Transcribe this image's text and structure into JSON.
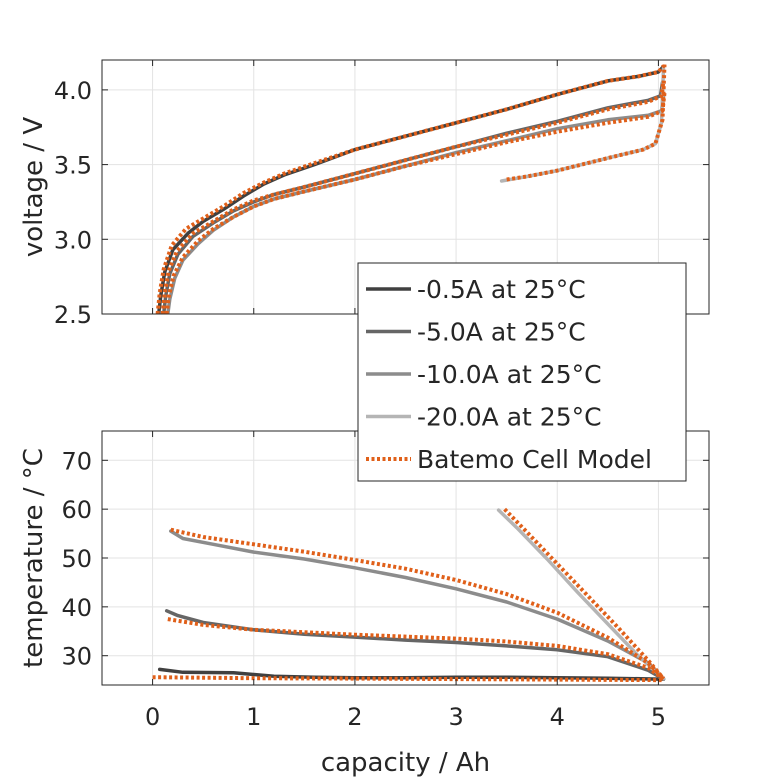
{
  "chart_data": [
    {
      "type": "line",
      "id": "voltage",
      "xlabel": "",
      "ylabel": "voltage / V",
      "xlim": [
        -0.5,
        5.5
      ],
      "ylim": [
        2.5,
        4.2
      ],
      "xticks": [
        0,
        1,
        2,
        3,
        4,
        5
      ],
      "yticks": [
        2.5,
        3.0,
        3.5,
        4.0
      ],
      "ytick_labels": [
        "2.5",
        "3.0",
        "3.5",
        "4.0"
      ],
      "grid": true,
      "series": [
        {
          "name": "-0.5A at 25°C",
          "color": "#404040",
          "style": "solid",
          "x": [
            0.06,
            0.08,
            0.12,
            0.2,
            0.35,
            0.5,
            0.7,
            0.9,
            1.1,
            1.3,
            1.6,
            2.0,
            2.5,
            3.0,
            3.5,
            4.0,
            4.5,
            4.8,
            5.0,
            5.04
          ],
          "y": [
            2.5,
            2.62,
            2.78,
            2.93,
            3.04,
            3.12,
            3.2,
            3.29,
            3.37,
            3.43,
            3.5,
            3.6,
            3.69,
            3.78,
            3.87,
            3.97,
            4.06,
            4.09,
            4.12,
            4.15
          ]
        },
        {
          "name": "-5.0A at 25°C",
          "color": "#666666",
          "style": "solid",
          "x": [
            0.11,
            0.13,
            0.17,
            0.25,
            0.4,
            0.6,
            0.8,
            1.0,
            1.2,
            1.5,
            2.0,
            2.5,
            3.0,
            3.5,
            4.0,
            4.5,
            4.9,
            5.02,
            5.04
          ],
          "y": [
            2.5,
            2.62,
            2.77,
            2.9,
            3.02,
            3.11,
            3.19,
            3.25,
            3.3,
            3.35,
            3.44,
            3.53,
            3.62,
            3.71,
            3.79,
            3.88,
            3.93,
            3.96,
            4.05
          ]
        },
        {
          "name": "-10.0A at 25°C",
          "color": "#8c8c8c",
          "style": "solid",
          "x": [
            0.15,
            0.17,
            0.22,
            0.3,
            0.45,
            0.6,
            0.8,
            1.0,
            1.2,
            1.5,
            2.0,
            2.5,
            3.0,
            3.5,
            4.0,
            4.5,
            4.9,
            5.03,
            5.05
          ],
          "y": [
            2.5,
            2.6,
            2.74,
            2.86,
            2.97,
            3.06,
            3.15,
            3.22,
            3.27,
            3.32,
            3.4,
            3.49,
            3.58,
            3.66,
            3.74,
            3.8,
            3.83,
            3.86,
            3.96
          ]
        },
        {
          "name": "-20.0A at 25°C",
          "color": "#b5b5b5",
          "style": "solid",
          "x": [
            3.45,
            3.7,
            4.0,
            4.3,
            4.6,
            4.85,
            4.97,
            5.03,
            5.05
          ],
          "y": [
            3.39,
            3.42,
            3.46,
            3.51,
            3.56,
            3.6,
            3.64,
            3.78,
            4.15
          ]
        },
        {
          "name": "Batemo Cell Model",
          "color": "#e0601a",
          "style": "dotted",
          "x": [
            0.05,
            0.07,
            0.11,
            0.19,
            0.33,
            0.5,
            0.7,
            0.9,
            1.1,
            1.3,
            1.6,
            2.0,
            2.5,
            3.0,
            3.5,
            4.0,
            4.5,
            4.8,
            5.0,
            5.05
          ],
          "y": [
            2.5,
            2.64,
            2.8,
            2.96,
            3.07,
            3.14,
            3.22,
            3.31,
            3.38,
            3.44,
            3.51,
            3.6,
            3.69,
            3.78,
            3.87,
            3.97,
            4.06,
            4.09,
            4.12,
            4.16
          ]
        },
        {
          "name": "",
          "color": "#e0601a",
          "style": "dotted",
          "x": [
            0.1,
            0.12,
            0.16,
            0.24,
            0.4,
            0.6,
            0.8,
            1.0,
            1.2,
            1.5,
            2.0,
            2.5,
            3.0,
            3.5,
            4.0,
            4.5,
            4.9,
            5.03,
            5.05
          ],
          "y": [
            2.5,
            2.64,
            2.79,
            2.92,
            3.04,
            3.12,
            3.2,
            3.26,
            3.3,
            3.35,
            3.44,
            3.53,
            3.62,
            3.7,
            3.78,
            3.87,
            3.92,
            3.96,
            4.06
          ]
        },
        {
          "name": "",
          "color": "#e0601a",
          "style": "dotted",
          "x": [
            0.14,
            0.16,
            0.21,
            0.3,
            0.45,
            0.6,
            0.8,
            1.0,
            1.2,
            1.5,
            2.0,
            2.5,
            3.0,
            3.5,
            4.0,
            4.5,
            4.9,
            5.04,
            5.06
          ],
          "y": [
            2.5,
            2.62,
            2.76,
            2.88,
            2.99,
            3.07,
            3.15,
            3.22,
            3.27,
            3.32,
            3.4,
            3.49,
            3.57,
            3.65,
            3.72,
            3.78,
            3.82,
            3.86,
            3.98
          ]
        },
        {
          "name": "",
          "color": "#e0601a",
          "style": "dotted",
          "x": [
            3.5,
            3.7,
            4.0,
            4.3,
            4.6,
            4.85,
            4.97,
            5.04,
            5.06
          ],
          "y": [
            3.4,
            3.42,
            3.46,
            3.51,
            3.56,
            3.6,
            3.64,
            3.8,
            4.17
          ]
        }
      ]
    },
    {
      "type": "line",
      "id": "temperature",
      "xlabel": "capacity / Ah",
      "ylabel": "temperature / °C",
      "xlim": [
        -0.5,
        5.5
      ],
      "ylim": [
        24,
        76
      ],
      "xticks": [
        0,
        1,
        2,
        3,
        4,
        5
      ],
      "xtick_labels": [
        "0",
        "1",
        "2",
        "3",
        "4",
        "5"
      ],
      "yticks": [
        30,
        40,
        50,
        60,
        70
      ],
      "ytick_labels": [
        "30",
        "40",
        "50",
        "60",
        "70"
      ],
      "grid": true,
      "series": [
        {
          "name": "-0.5A at 25°C",
          "color": "#404040",
          "style": "solid",
          "x": [
            0.07,
            0.3,
            0.8,
            1.2,
            1.6,
            2.0,
            2.5,
            3.0,
            3.5,
            4.0,
            4.5,
            5.0,
            5.05
          ],
          "y": [
            27.2,
            26.6,
            26.5,
            25.8,
            25.6,
            25.5,
            25.5,
            25.6,
            25.6,
            25.5,
            25.4,
            25.2,
            25.2
          ]
        },
        {
          "name": "-5.0A at 25°C",
          "color": "#666666",
          "style": "solid",
          "x": [
            0.14,
            0.25,
            0.5,
            1.0,
            1.5,
            2.0,
            2.5,
            3.0,
            3.5,
            4.0,
            4.5,
            4.9,
            5.05
          ],
          "y": [
            39.2,
            38.2,
            36.8,
            35.3,
            34.4,
            33.8,
            33.2,
            32.7,
            32.0,
            31.2,
            29.8,
            27.0,
            25.2
          ]
        },
        {
          "name": "-10.0A at 25°C",
          "color": "#8c8c8c",
          "style": "solid",
          "x": [
            0.18,
            0.3,
            0.6,
            1.0,
            1.5,
            2.0,
            2.5,
            3.0,
            3.5,
            4.0,
            4.5,
            4.9,
            5.05
          ],
          "y": [
            55.5,
            54.0,
            52.8,
            51.2,
            49.8,
            48.0,
            46.0,
            43.7,
            41.0,
            37.5,
            33.0,
            28.5,
            25.3
          ]
        },
        {
          "name": "-20.0A at 25°C",
          "color": "#b5b5b5",
          "style": "solid",
          "x": [
            3.42,
            3.6,
            3.9,
            4.2,
            4.5,
            4.8,
            5.05
          ],
          "y": [
            59.8,
            56.2,
            49.8,
            43.0,
            36.5,
            30.0,
            25.3
          ]
        },
        {
          "name": "Batemo Cell Model",
          "color": "#e0601a",
          "style": "dotted",
          "x": [
            0.0,
            0.5,
            1.0,
            2.0,
            3.0,
            4.0,
            5.0,
            5.05
          ],
          "y": [
            25.6,
            25.5,
            25.4,
            25.3,
            25.2,
            25.1,
            25.0,
            25.0
          ]
        },
        {
          "name": "",
          "color": "#e0601a",
          "style": "dotted",
          "x": [
            0.15,
            0.5,
            1.0,
            1.5,
            2.0,
            2.5,
            3.0,
            3.5,
            4.0,
            4.5,
            4.9,
            5.05
          ],
          "y": [
            37.5,
            36.3,
            35.3,
            34.8,
            34.3,
            33.9,
            33.5,
            32.9,
            32.0,
            30.3,
            27.5,
            25.2
          ]
        },
        {
          "name": "",
          "color": "#e0601a",
          "style": "dotted",
          "x": [
            0.18,
            0.5,
            1.0,
            1.5,
            2.0,
            2.5,
            3.0,
            3.5,
            4.0,
            4.5,
            4.9,
            5.05
          ],
          "y": [
            55.8,
            54.3,
            52.8,
            51.3,
            49.6,
            47.8,
            45.5,
            42.6,
            38.8,
            33.7,
            28.5,
            25.3
          ]
        },
        {
          "name": "",
          "color": "#e0601a",
          "style": "dotted",
          "x": [
            3.48,
            3.7,
            4.0,
            4.3,
            4.6,
            4.9,
            5.05
          ],
          "y": [
            60.0,
            55.3,
            48.8,
            42.3,
            35.8,
            29.0,
            25.3
          ]
        }
      ]
    }
  ],
  "legend": {
    "placement": "center-right",
    "entries": [
      {
        "label": "-0.5A at 25°C",
        "color": "#404040",
        "style": "solid"
      },
      {
        "label": "-5.0A at 25°C",
        "color": "#666666",
        "style": "solid"
      },
      {
        "label": "-10.0A at 25°C",
        "color": "#8c8c8c",
        "style": "solid"
      },
      {
        "label": "-20.0A at 25°C",
        "color": "#b5b5b5",
        "style": "solid"
      },
      {
        "label": "Batemo Cell Model",
        "color": "#e0601a",
        "style": "dotted"
      }
    ]
  }
}
